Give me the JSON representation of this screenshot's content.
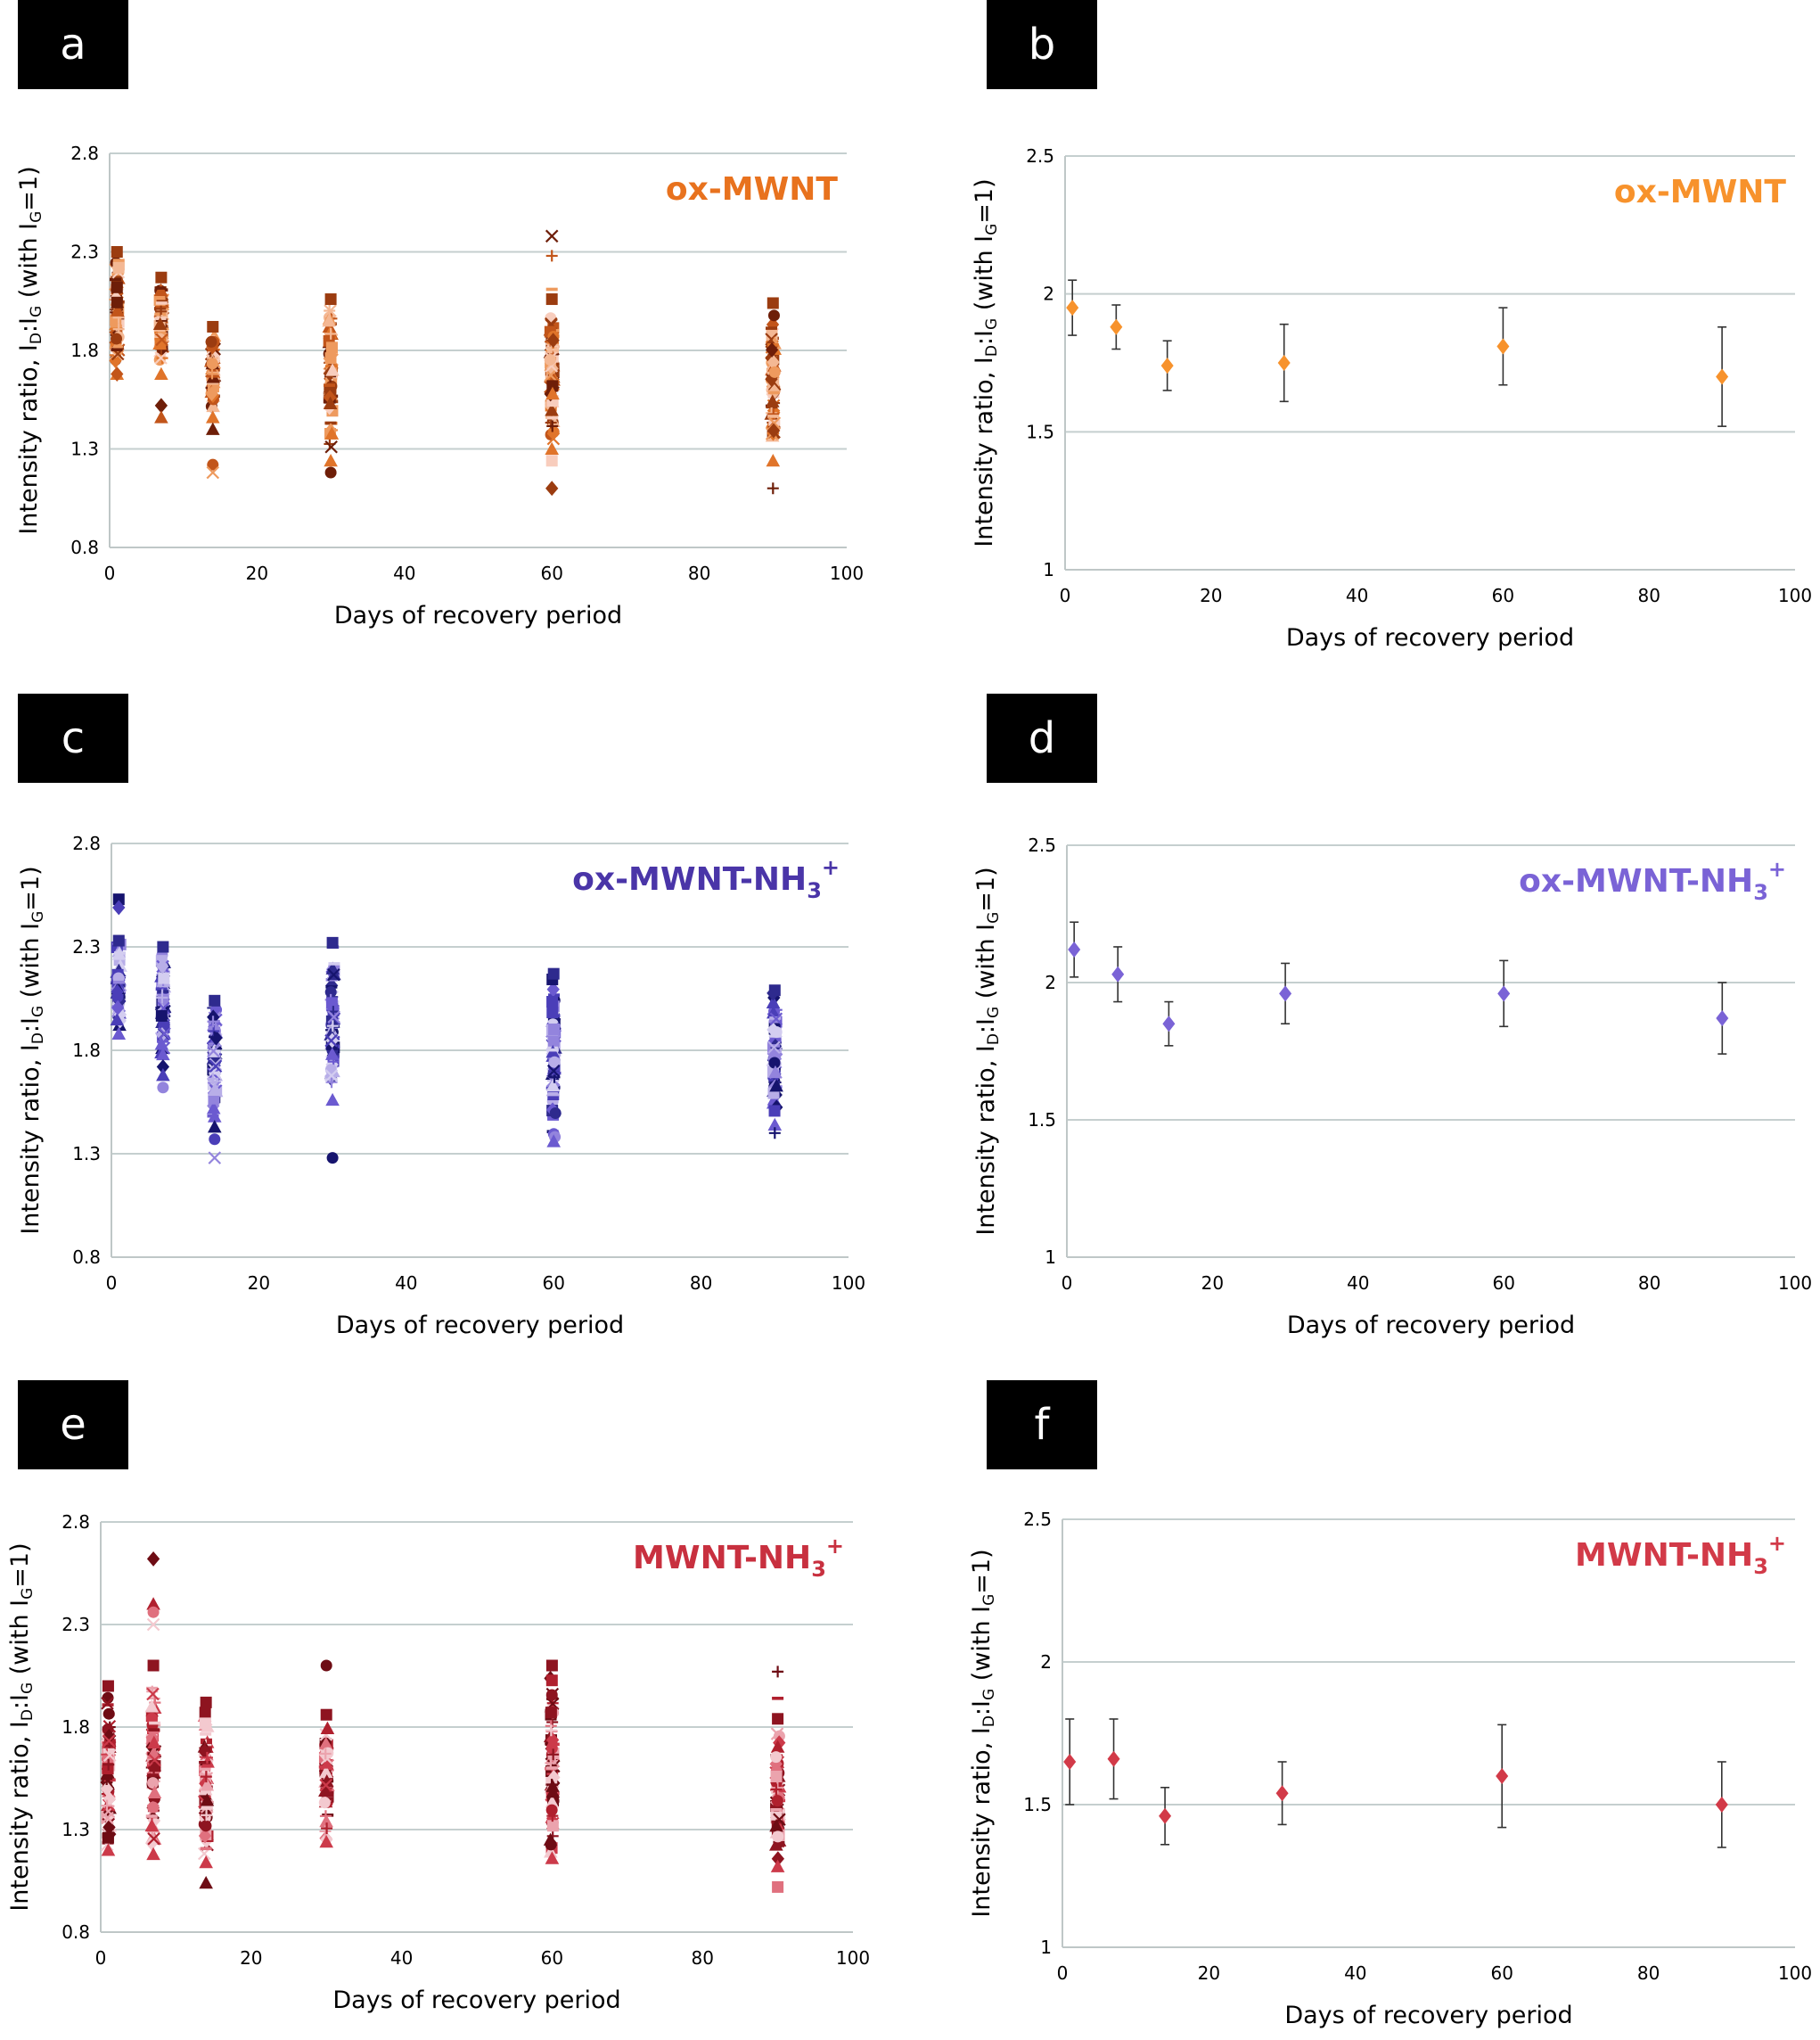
{
  "panels": [
    {
      "label": "a",
      "chart_data": {
        "type": "scatter",
        "title": "ox-MWNT",
        "title_sup": "",
        "xlabel": "Days of recovery period",
        "ylabel": "Intensity ratio, ID:IG (with IG=1)",
        "xlim": [
          0,
          100
        ],
        "ylim": [
          0.8,
          2.8
        ],
        "xticks": [
          "0",
          "20",
          "40",
          "60",
          "80",
          "100"
        ],
        "yticks": [
          "0.8",
          "1.3",
          "1.8",
          "2.3",
          "2.8"
        ],
        "grid": true,
        "color": "#e8721e",
        "palette": [
          "#6e1e08",
          "#9b3c10",
          "#c2551a",
          "#e0742a",
          "#ee9a5e",
          "#f4b894",
          "#f8cdbd"
        ],
        "series": [
          {
            "x": 1,
            "min": 1.68,
            "max": 2.3,
            "outliers": [
              2.12,
              1.68
            ]
          },
          {
            "x": 7,
            "min": 1.68,
            "max": 2.17,
            "outliers": [
              1.52,
              1.46
            ]
          },
          {
            "x": 14,
            "min": 1.46,
            "max": 1.92,
            "outliers": [
              1.4,
              1.22,
              1.18
            ]
          },
          {
            "x": 30,
            "min": 1.24,
            "max": 2.06,
            "outliers": [
              1.18
            ]
          },
          {
            "x": 60,
            "min": 1.3,
            "max": 2.06,
            "outliers": [
              2.38,
              2.28,
              2.11,
              1.24,
              1.1
            ]
          },
          {
            "x": 90,
            "min": 1.24,
            "max": 2.04,
            "outliers": [
              1.1
            ]
          }
        ]
      }
    },
    {
      "label": "b",
      "chart_data": {
        "type": "scatter",
        "title": "ox-MWNT",
        "title_sup": "",
        "xlabel": "Days of recovery period",
        "ylabel": "Intensity ratio, ID:IG (with IG=1)",
        "xlim": [
          0,
          100
        ],
        "ylim": [
          1,
          2.5
        ],
        "xticks": [
          "0",
          "20",
          "40",
          "60",
          "80",
          "100"
        ],
        "yticks": [
          "1",
          "1.5",
          "2",
          "2.5"
        ],
        "grid": true,
        "color": "#f7922c",
        "error_bars": true,
        "points": [
          {
            "x": 1,
            "y": 1.95,
            "err": 0.1
          },
          {
            "x": 7,
            "y": 1.88,
            "err": 0.08
          },
          {
            "x": 14,
            "y": 1.74,
            "err": 0.09
          },
          {
            "x": 30,
            "y": 1.75,
            "err": 0.14
          },
          {
            "x": 60,
            "y": 1.81,
            "err": 0.14
          },
          {
            "x": 90,
            "y": 1.7,
            "err": 0.18
          }
        ]
      }
    },
    {
      "label": "c",
      "chart_data": {
        "type": "scatter",
        "title": "ox-MWNT-NH",
        "title_sub": "3",
        "title_sup": "+",
        "xlabel": "Days of recovery period",
        "ylabel": "Intensity ratio, ID:IG (with IG=1)",
        "xlim": [
          0,
          100
        ],
        "ylim": [
          0.8,
          2.8
        ],
        "xticks": [
          "0",
          "20",
          "40",
          "60",
          "80",
          "100"
        ],
        "yticks": [
          "0.8",
          "1.3",
          "1.8",
          "2.3",
          "2.8"
        ],
        "grid": true,
        "color": "#4a35a8",
        "palette": [
          "#16146e",
          "#2e2a8e",
          "#4a3eb8",
          "#6b5ad0",
          "#9384dd",
          "#b8aee8",
          "#d3cdf0"
        ],
        "series": [
          {
            "x": 1,
            "min": 1.88,
            "max": 2.33,
            "outliers": [
              2.53,
              2.49
            ]
          },
          {
            "x": 7,
            "min": 1.78,
            "max": 2.3,
            "outliers": [
              1.72,
              1.68,
              1.62
            ]
          },
          {
            "x": 14,
            "min": 1.48,
            "max": 2.04,
            "outliers": [
              1.43,
              1.37,
              1.28
            ]
          },
          {
            "x": 30,
            "min": 1.56,
            "max": 2.32,
            "outliers": [
              1.28
            ]
          },
          {
            "x": 60,
            "min": 1.36,
            "max": 2.17,
            "outliers": [
              1.7
            ]
          },
          {
            "x": 90,
            "min": 1.44,
            "max": 2.09,
            "outliers": [
              1.4
            ]
          }
        ]
      }
    },
    {
      "label": "d",
      "chart_data": {
        "type": "scatter",
        "title": "ox-MWNT-NH",
        "title_sub": "3",
        "title_sup": "+",
        "xlabel": "Days of recovery period",
        "ylabel": "Intensity ratio, ID:IG (with IG=1)",
        "xlim": [
          0,
          100
        ],
        "ylim": [
          1,
          2.5
        ],
        "xticks": [
          "0",
          "20",
          "40",
          "60",
          "80",
          "100"
        ],
        "yticks": [
          "1",
          "1.5",
          "2",
          "2.5"
        ],
        "grid": true,
        "color": "#7a63d6",
        "error_bars": true,
        "points": [
          {
            "x": 1,
            "y": 2.12,
            "err": 0.1
          },
          {
            "x": 7,
            "y": 2.03,
            "err": 0.1
          },
          {
            "x": 14,
            "y": 1.85,
            "err": 0.08
          },
          {
            "x": 30,
            "y": 1.96,
            "err": 0.11
          },
          {
            "x": 60,
            "y": 1.96,
            "err": 0.12
          },
          {
            "x": 90,
            "y": 1.87,
            "err": 0.13
          }
        ]
      }
    },
    {
      "label": "e",
      "chart_data": {
        "type": "scatter",
        "title": "MWNT-NH",
        "title_sub": "3",
        "title_sup": "+",
        "xlabel": "Days of recovery period",
        "ylabel": "Intensity ratio, ID:IG (with IG=1)",
        "xlim": [
          0,
          100
        ],
        "ylim": [
          0.8,
          2.8
        ],
        "xticks": [
          "0",
          "20",
          "40",
          "60",
          "80",
          "100"
        ],
        "yticks": [
          "0.8",
          "1.3",
          "1.8",
          "2.3",
          "2.8"
        ],
        "grid": true,
        "color": "#c8303f",
        "palette": [
          "#6e0c14",
          "#8e1420",
          "#b0202e",
          "#cc3a4a",
          "#e0707e",
          "#eba3ad",
          "#f3c9cf"
        ],
        "series": [
          {
            "x": 1,
            "min": 1.2,
            "max": 2.0,
            "outliers": [
              1.26
            ]
          },
          {
            "x": 7,
            "min": 1.18,
            "max": 2.1,
            "outliers": [
              2.62,
              2.4,
              2.36,
              2.3
            ]
          },
          {
            "x": 14,
            "min": 1.14,
            "max": 1.92,
            "outliers": [
              1.04
            ]
          },
          {
            "x": 30,
            "min": 1.24,
            "max": 1.86,
            "outliers": [
              2.1
            ]
          },
          {
            "x": 60,
            "min": 1.16,
            "max": 2.1,
            "outliers": []
          },
          {
            "x": 90,
            "min": 1.12,
            "max": 1.84,
            "outliers": [
              2.07,
              1.94,
              1.02
            ]
          }
        ]
      }
    },
    {
      "label": "f",
      "chart_data": {
        "type": "scatter",
        "title": "MWNT-NH",
        "title_sub": "3",
        "title_sup": "+",
        "xlabel": "Days of recovery period",
        "ylabel": "Intensity ratio, ID:IG (with IG=1)",
        "xlim": [
          0,
          100
        ],
        "ylim": [
          1,
          2.5
        ],
        "xticks": [
          "0",
          "20",
          "40",
          "60",
          "80",
          "100"
        ],
        "yticks": [
          "1",
          "1.5",
          "2",
          "2.5"
        ],
        "grid": true,
        "color": "#d23a48",
        "error_bars": true,
        "points": [
          {
            "x": 1,
            "y": 1.65,
            "err": 0.15
          },
          {
            "x": 7,
            "y": 1.66,
            "err": 0.14
          },
          {
            "x": 14,
            "y": 1.46,
            "err": 0.1
          },
          {
            "x": 30,
            "y": 1.54,
            "err": 0.11
          },
          {
            "x": 60,
            "y": 1.6,
            "err": 0.18
          },
          {
            "x": 90,
            "y": 1.5,
            "err": 0.15
          }
        ]
      }
    }
  ]
}
